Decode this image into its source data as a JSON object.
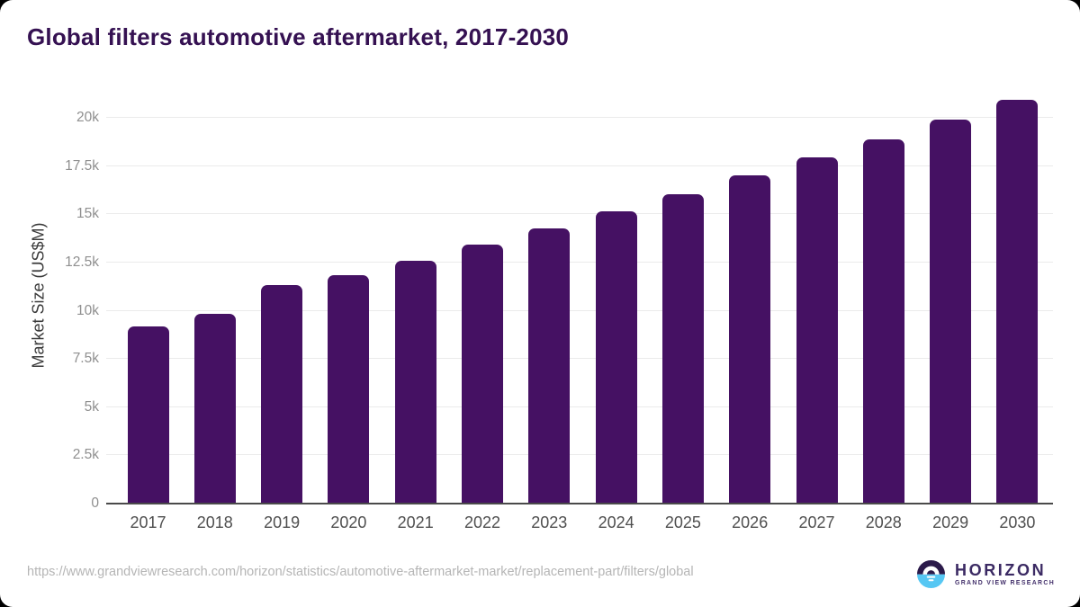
{
  "header": {
    "title": "Global filters automotive aftermarket, 2017-2030"
  },
  "chart_data": {
    "type": "bar",
    "title": "Global filters automotive aftermarket, 2017-2030",
    "categories": [
      "2017",
      "2018",
      "2019",
      "2020",
      "2021",
      "2022",
      "2023",
      "2024",
      "2025",
      "2026",
      "2027",
      "2028",
      "2029",
      "2030"
    ],
    "values": [
      9170,
      9840,
      11310,
      11820,
      12580,
      13430,
      14280,
      15160,
      16050,
      17020,
      17950,
      18900,
      19900,
      20950
    ],
    "xlabel": "",
    "ylabel": "Market Size (US$M)",
    "ylim": [
      0,
      21680
    ],
    "yticks": {
      "values": [
        0,
        2500,
        5000,
        7500,
        10000,
        12500,
        15000,
        17500,
        20000
      ],
      "labels": [
        "0",
        "2.5k",
        "5k",
        "7.5k",
        "10k",
        "12.5k",
        "15k",
        "17.5k",
        "20k"
      ]
    },
    "grid": "horizontal",
    "legend": "none",
    "bar_color": "#451163"
  },
  "colors": {
    "bar": "#451163",
    "title_text": "#351152",
    "logo_dark": "#2b1a4a",
    "logo_blue": "#56c7f3"
  },
  "footer": {
    "source_url": "https://www.grandviewresearch.com/horizon/statistics/automotive-aftermarket-market/replacement-part/filters/global",
    "logo_name": "HORIZON",
    "logo_subtitle": "GRAND VIEW RESEARCH"
  }
}
